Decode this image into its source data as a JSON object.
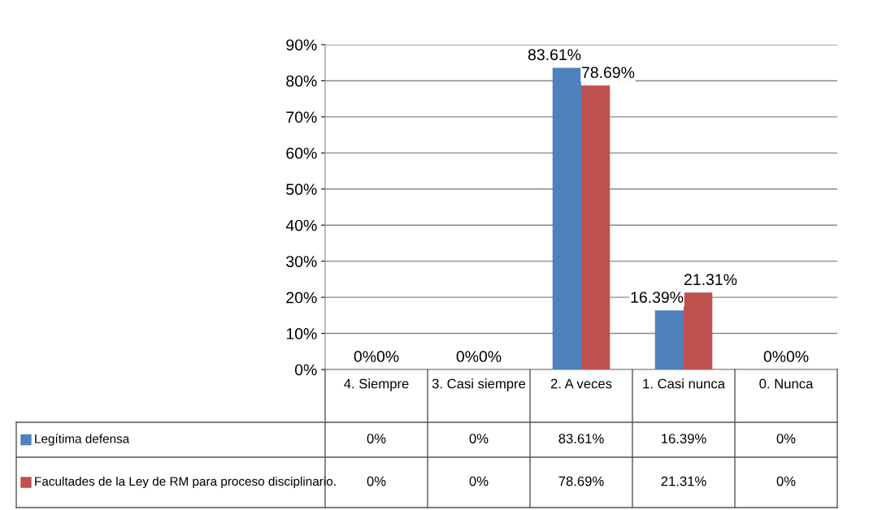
{
  "chart_data": {
    "type": "bar",
    "categories": [
      "4. Siempre",
      "3. Casi siempre",
      "2. A veces",
      "1. Casi nunca",
      "0. Nunca"
    ],
    "series": [
      {
        "name": "Legítima defensa",
        "color": "#4f81bd",
        "values": [
          0,
          0,
          83.61,
          16.39,
          0
        ],
        "value_labels": [
          "0%",
          "0%",
          "83.61%",
          "16.39%",
          "0%"
        ]
      },
      {
        "name": "Facultades de la Ley de RM para proceso disciplinario.",
        "color": "#c0504d",
        "values": [
          0,
          0,
          78.69,
          21.31,
          0
        ],
        "value_labels": [
          "0%",
          "0%",
          "78.69%",
          "21.31%",
          "0%"
        ]
      }
    ],
    "ylim": [
      0,
      90
    ],
    "yticks": [
      {
        "value": 0,
        "label": "0%"
      },
      {
        "value": 10,
        "label": "10%"
      },
      {
        "value": 20,
        "label": "20%"
      },
      {
        "value": 30,
        "label": "30%"
      },
      {
        "value": 40,
        "label": "40%"
      },
      {
        "value": 50,
        "label": "50%"
      },
      {
        "value": 60,
        "label": "60%"
      },
      {
        "value": 70,
        "label": "70%"
      },
      {
        "value": 80,
        "label": "80%"
      },
      {
        "value": 90,
        "label": "90%"
      }
    ],
    "grid": "y",
    "legend": "bottom"
  }
}
